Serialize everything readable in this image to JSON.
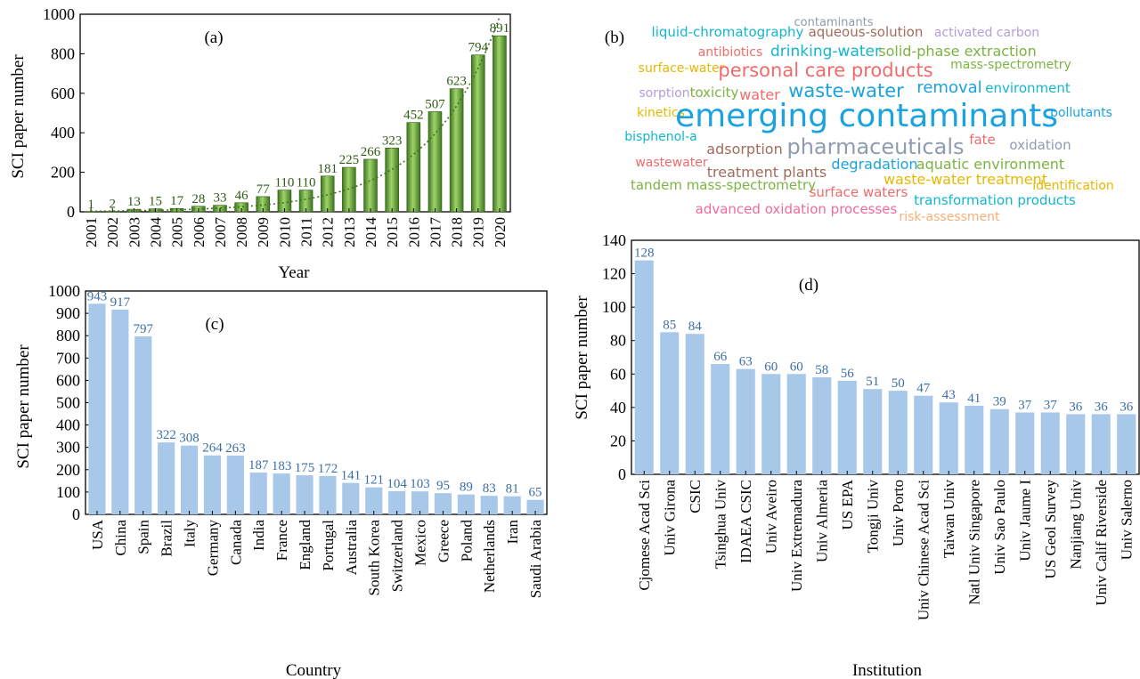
{
  "panels": {
    "a": {
      "label": "(a)"
    },
    "b": {
      "label": "(b)"
    },
    "c": {
      "label": "(c)"
    },
    "d": {
      "label": "(d)"
    }
  },
  "colors": {
    "green_bar": "#4e8a2a",
    "green_bar_light": "#9fd46a",
    "green_label": "#2f5a14",
    "blue_bar": "#a8c8ea",
    "blue_label": "#3b6ea8"
  },
  "wordcloud": {
    "words": [
      {
        "text": "contaminants",
        "color": "#8e9bb0"
      },
      {
        "text": "liquid-chromatography",
        "color": "#12b6cf"
      },
      {
        "text": "aqueous-solution",
        "color": "#a26b5c"
      },
      {
        "text": "activated carbon",
        "color": "#b39ddb"
      },
      {
        "text": "antibiotics",
        "color": "#ef6c6c"
      },
      {
        "text": "drinking-water",
        "color": "#12b6cf"
      },
      {
        "text": "solid-phase extraction",
        "color": "#7cb342"
      },
      {
        "text": "surface-water",
        "color": "#e6b800"
      },
      {
        "text": "personal care products",
        "color": "#f06b6b"
      },
      {
        "text": "mass-spectrometry",
        "color": "#7cb342"
      },
      {
        "text": "sorption",
        "color": "#b39ddb"
      },
      {
        "text": "toxicity",
        "color": "#7cb342"
      },
      {
        "text": "water",
        "color": "#f06b6b"
      },
      {
        "text": "waste-water",
        "color": "#1aa3e0"
      },
      {
        "text": "removal",
        "color": "#1aa3e0"
      },
      {
        "text": "environment",
        "color": "#12b6cf"
      },
      {
        "text": "kinetics",
        "color": "#e6b800"
      },
      {
        "text": "emerging contaminants",
        "color": "#1aa3e0"
      },
      {
        "text": "pollutants",
        "color": "#1aa3e0"
      },
      {
        "text": "bisphenol-a",
        "color": "#12b6cf"
      },
      {
        "text": "adsorption",
        "color": "#a26b5c"
      },
      {
        "text": "pharmaceuticals",
        "color": "#8e9bb0"
      },
      {
        "text": "fate",
        "color": "#f06b6b"
      },
      {
        "text": "oxidation",
        "color": "#8e9bb0"
      },
      {
        "text": "wastewater",
        "color": "#f06b6b"
      },
      {
        "text": "degradation",
        "color": "#1aa3e0"
      },
      {
        "text": "aquatic environment",
        "color": "#7cb342"
      },
      {
        "text": "treatment plants",
        "color": "#a26b5c"
      },
      {
        "text": "waste-water treatment",
        "color": "#e6b800"
      },
      {
        "text": "tandem mass-spectrometry",
        "color": "#7cb342"
      },
      {
        "text": "surface waters",
        "color": "#f06b6b"
      },
      {
        "text": "identification",
        "color": "#e6b800"
      },
      {
        "text": "transformation products",
        "color": "#12b6cf"
      },
      {
        "text": "advanced oxidation processes",
        "color": "#f06b9c"
      },
      {
        "text": "risk-assessment",
        "color": "#f5b07a"
      }
    ]
  },
  "chart_data": [
    {
      "panel": "a",
      "type": "bar",
      "title": "",
      "xlabel": "Year",
      "ylabel": "SCI paper number",
      "ylim": [
        0,
        1000
      ],
      "yticks": [
        0,
        200,
        400,
        600,
        800,
        1000
      ],
      "trendline": "dotted exponential",
      "categories": [
        "2001",
        "2002",
        "2003",
        "2004",
        "2005",
        "2006",
        "2007",
        "2008",
        "2009",
        "2010",
        "2011",
        "2012",
        "2013",
        "2014",
        "2015",
        "2016",
        "2017",
        "2018",
        "2019",
        "2020"
      ],
      "values": [
        1,
        2,
        13,
        15,
        17,
        28,
        33,
        46,
        77,
        110,
        110,
        181,
        225,
        266,
        323,
        452,
        507,
        623,
        794,
        891
      ],
      "grid": false
    },
    {
      "panel": "c",
      "type": "bar",
      "title": "",
      "xlabel": "Country",
      "ylabel": "SCI paper number",
      "ylim": [
        0,
        1000
      ],
      "yticks": [
        0,
        100,
        200,
        300,
        400,
        500,
        600,
        700,
        800,
        900,
        1000
      ],
      "categories": [
        "USA",
        "China",
        "Spain",
        "Brazil",
        "Italy",
        "Germany",
        "Canada",
        "India",
        "France",
        "England",
        "Portugal",
        "Australia",
        "South Korea",
        "Switzerland",
        "Mexico",
        "Greece",
        "Poland",
        "Netherlands",
        "Iran",
        "Saudi Arabia"
      ],
      "values": [
        943,
        917,
        797,
        322,
        308,
        264,
        263,
        187,
        183,
        175,
        172,
        141,
        121,
        104,
        103,
        95,
        89,
        83,
        81,
        65
      ],
      "grid": false
    },
    {
      "panel": "d",
      "type": "bar",
      "title": "",
      "xlabel": "Institution",
      "ylabel": "SCI paper number",
      "ylim": [
        0,
        140
      ],
      "yticks": [
        0,
        20,
        40,
        60,
        80,
        100,
        120,
        140
      ],
      "categories": [
        "Cjomese Acad Sci",
        "Univ Girona",
        "CSIC",
        "Tsinghua Univ",
        "IDAEA CSIC",
        "Univ Aveiro",
        "Univ Extremadura",
        "Univ Almeria",
        "US EPA",
        "Tongji Univ",
        "Univ Porto",
        "Univ Chinese Acad Sci",
        "Taiwan Univ",
        "Natl Univ Singapore",
        "Univ Sao Paulo",
        "Univ Jaume I",
        "US Geol Survey",
        "Nanjiang Univ",
        "Univ Calif Riverside",
        "Univ Salerno"
      ],
      "values": [
        128,
        85,
        84,
        66,
        63,
        60,
        60,
        58,
        56,
        51,
        50,
        47,
        43,
        41,
        39,
        37,
        37,
        36,
        36,
        36
      ],
      "grid": false
    }
  ]
}
